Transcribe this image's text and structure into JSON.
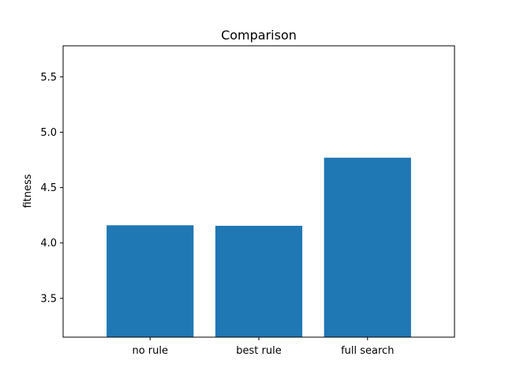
{
  "chart_data": {
    "type": "bar",
    "title": "Comparison",
    "xlabel": "",
    "ylabel": "fitness",
    "categories": [
      "no rule",
      "best rule",
      "full search"
    ],
    "values": [
      4.16,
      4.155,
      4.77
    ],
    "ylim": [
      3.15,
      5.78
    ],
    "yticks": [
      "3.5",
      "4.0",
      "4.5",
      "5.0",
      "5.5"
    ],
    "grid": false,
    "bar_color": "#1f77b4"
  }
}
